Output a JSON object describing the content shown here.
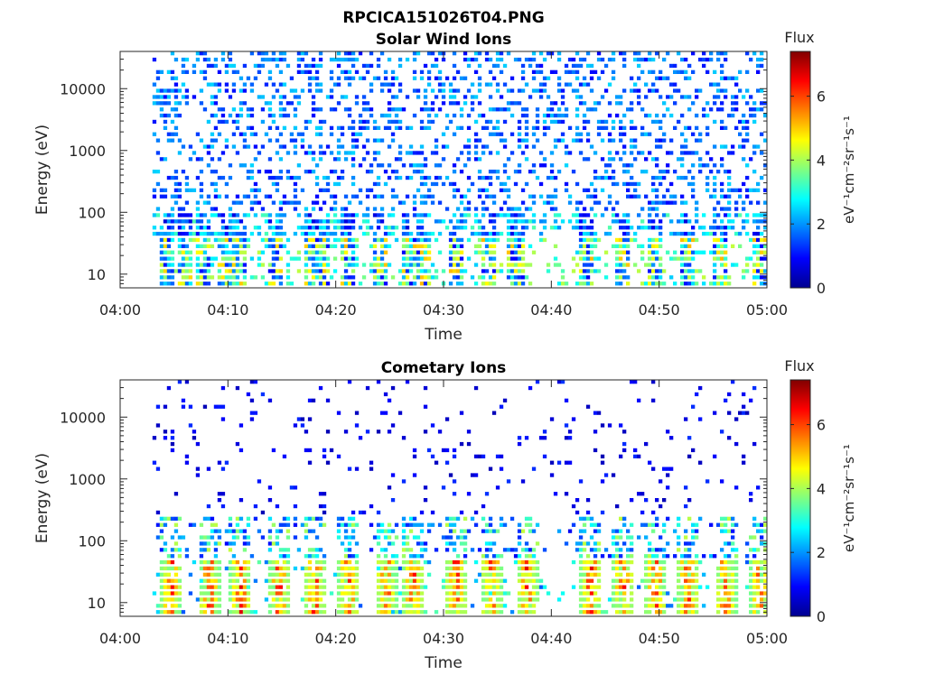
{
  "figure": {
    "title": "RPCICA151026T04.PNG"
  },
  "colormap": {
    "name": "jet",
    "stops": [
      "#00008f",
      "#0000ff",
      "#0080ff",
      "#00ffff",
      "#80ff80",
      "#ffff00",
      "#ff8000",
      "#ff0000",
      "#800000"
    ]
  },
  "chart_data": [
    {
      "type": "heatmap",
      "title": "Solar Wind Ions",
      "xlabel": "Time",
      "ylabel": "Energy (eV)",
      "x_ticks": [
        "04:00",
        "04:10",
        "04:20",
        "04:30",
        "04:40",
        "04:50",
        "05:00"
      ],
      "xlim": [
        "04:00",
        "05:00"
      ],
      "y_scale": "log",
      "y_ticks": [
        10,
        100,
        1000,
        10000
      ],
      "y_tick_labels": [
        "10",
        "100",
        "1000",
        "10000"
      ],
      "ylim": [
        6,
        40000
      ],
      "colorbar": {
        "label": "Flux",
        "units": "eV⁻¹cm⁻²sr⁻¹s⁻¹",
        "range": [
          0,
          7.4
        ],
        "ticks": [
          0,
          2,
          4,
          6
        ],
        "tick_labels": [
          "0",
          "2",
          "4",
          "6"
        ]
      },
      "data_start": "04:03",
      "bursts_min": [
        4.3,
        5.8,
        7.6,
        9.5,
        11,
        14.3,
        17.6,
        18.5,
        21,
        24,
        26.8,
        28,
        31,
        34,
        36.5,
        43,
        46.5,
        49.5,
        52.4,
        55.5,
        59.3
      ],
      "description": "sparse speckled flux at 2-3 across 100 eV-30 keV; enhancements near 20-200 eV at bursts"
    },
    {
      "type": "heatmap",
      "title": "Cometary Ions",
      "xlabel": "Time",
      "ylabel": "Energy (eV)",
      "x_ticks": [
        "04:00",
        "04:10",
        "04:20",
        "04:30",
        "04:40",
        "04:50",
        "05:00"
      ],
      "xlim": [
        "04:00",
        "05:00"
      ],
      "y_scale": "log",
      "y_ticks": [
        10,
        100,
        1000,
        10000
      ],
      "y_tick_labels": [
        "10",
        "100",
        "1000",
        "10000"
      ],
      "ylim": [
        6,
        40000
      ],
      "colorbar": {
        "label": "Flux",
        "units": "eV⁻¹cm⁻²sr⁻¹s⁻¹",
        "range": [
          0,
          7.4
        ],
        "ticks": [
          0,
          2,
          4,
          6
        ],
        "tick_labels": [
          "0",
          "2",
          "4",
          "6"
        ]
      },
      "data_start": "04:03",
      "bursts_min": [
        4.6,
        8.1,
        11,
        14.6,
        17.9,
        21,
        24.5,
        27,
        31,
        34.3,
        37.6,
        43.5,
        46.5,
        49.5,
        52.5,
        56,
        59.3
      ],
      "description": "intense flux (5-7) at 10-40 eV during bursts, sparse low flux above 100 eV"
    }
  ]
}
